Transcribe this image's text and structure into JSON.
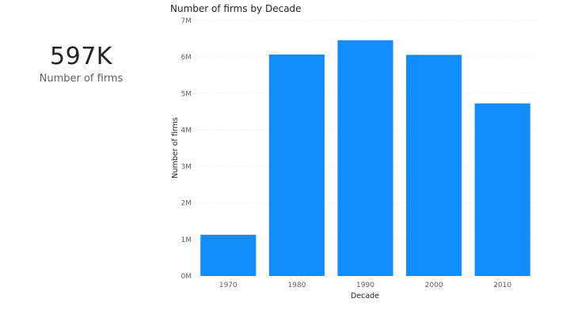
{
  "card": {
    "value": "597K",
    "label": "Number of firms"
  },
  "chart_data": {
    "type": "bar",
    "title": "Number of firms by Decade",
    "xlabel": "Decade",
    "ylabel": "Number of firms",
    "categories": [
      "1970",
      "1980",
      "1990",
      "2000",
      "2010"
    ],
    "values": [
      1130000,
      6070000,
      6460000,
      6060000,
      4730000
    ],
    "ylim": [
      0,
      7000000
    ],
    "yticks": [
      0,
      1000000,
      2000000,
      3000000,
      4000000,
      5000000,
      6000000,
      7000000
    ],
    "ytick_labels": [
      "0M",
      "1M",
      "2M",
      "3M",
      "4M",
      "5M",
      "6M",
      "7M"
    ],
    "grid": true,
    "bar_color": "#118dff"
  }
}
